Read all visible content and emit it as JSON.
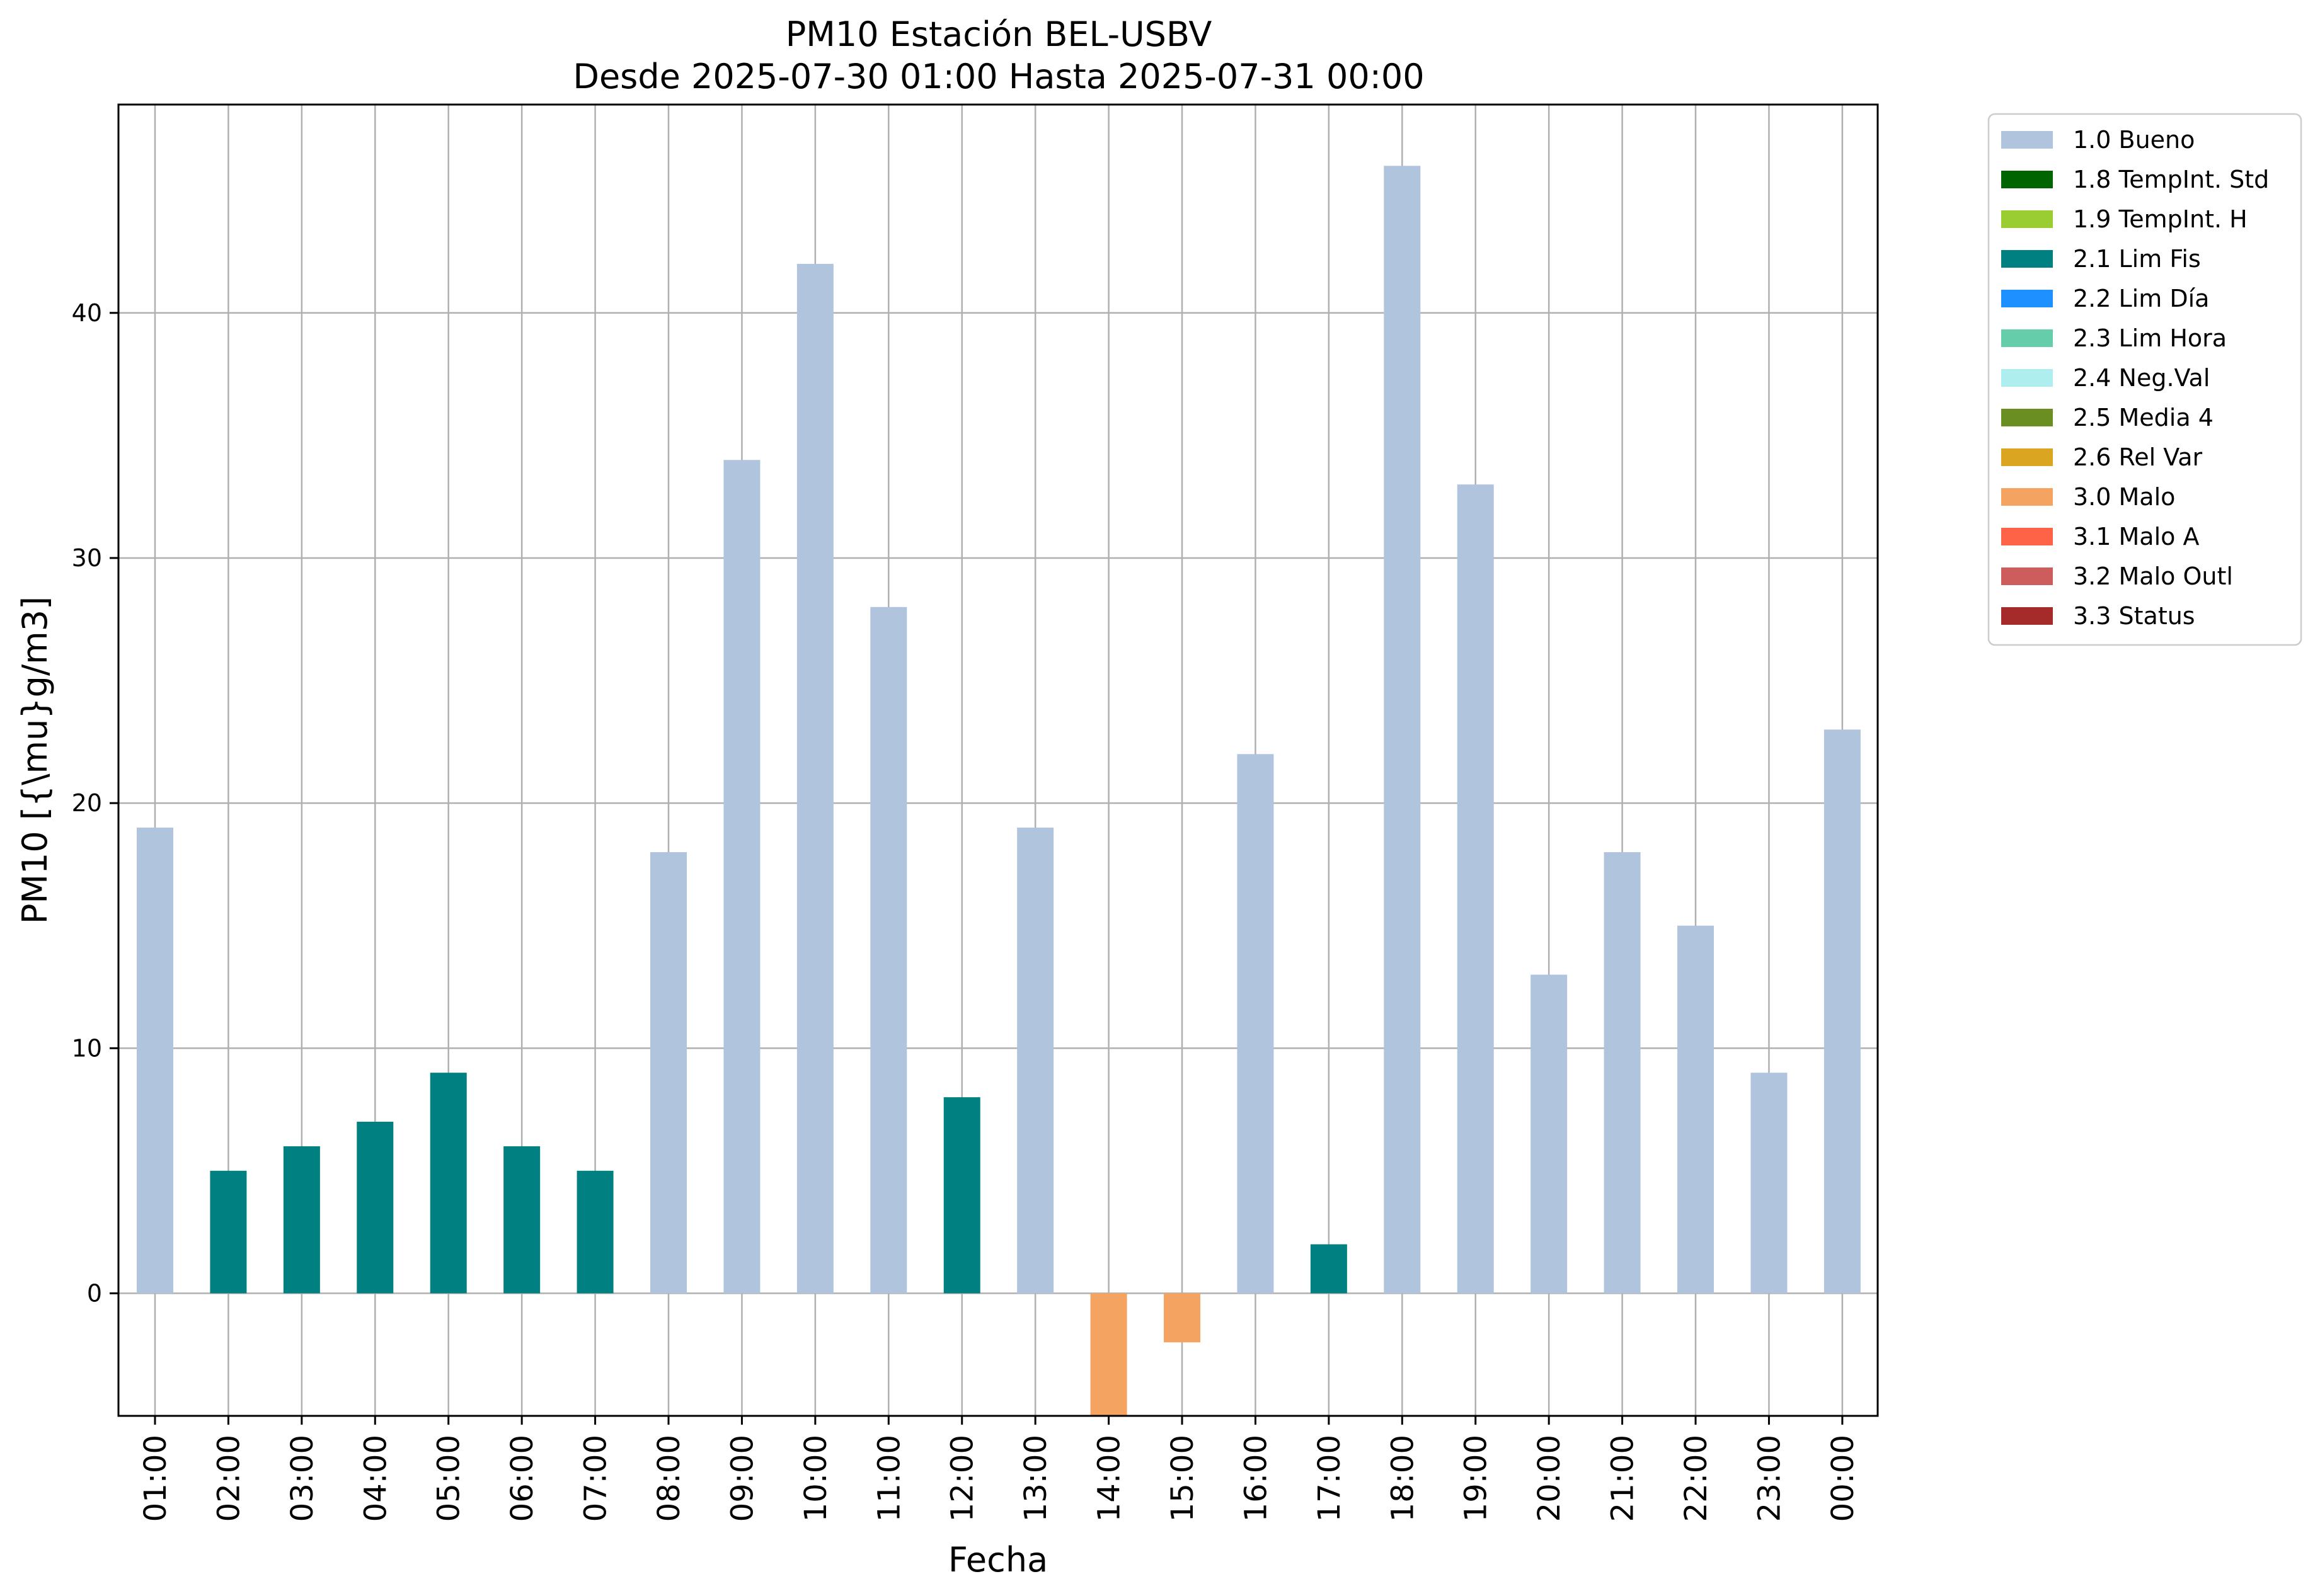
{
  "chart_data": {
    "type": "bar",
    "title": "PM10 Estación BEL-USBV",
    "subtitle": "Desde 2025-07-30 01:00 Hasta 2025-07-31 00:00",
    "xlabel": "Fecha",
    "ylabel": "PM10 [{\\mu}g/m3]",
    "categories": [
      "01:00",
      "02:00",
      "03:00",
      "04:00",
      "05:00",
      "06:00",
      "07:00",
      "08:00",
      "09:00",
      "10:00",
      "11:00",
      "12:00",
      "13:00",
      "14:00",
      "15:00",
      "16:00",
      "17:00",
      "18:00",
      "19:00",
      "20:00",
      "21:00",
      "22:00",
      "23:00",
      "00:00"
    ],
    "values": [
      19,
      5,
      6,
      7,
      9,
      6,
      5,
      18,
      34,
      42,
      28,
      8,
      19,
      -5,
      -2,
      22,
      2,
      46,
      33,
      13,
      18,
      15,
      9,
      23
    ],
    "flags": [
      "1.0 Bueno",
      "2.1 Lim Fis",
      "2.1 Lim Fis",
      "2.1 Lim Fis",
      "2.1 Lim Fis",
      "2.1 Lim Fis",
      "2.1 Lim Fis",
      "1.0 Bueno",
      "1.0 Bueno",
      "1.0 Bueno",
      "1.0 Bueno",
      "2.1 Lim Fis",
      "1.0 Bueno",
      "3.0 Malo",
      "3.0 Malo",
      "1.0 Bueno",
      "2.1 Lim Fis",
      "1.0 Bueno",
      "1.0 Bueno",
      "1.0 Bueno",
      "1.0 Bueno",
      "1.0 Bueno",
      "1.0 Bueno",
      "1.0 Bueno"
    ],
    "ylim": [
      -5,
      48.5
    ],
    "yticks": [
      "0",
      "10",
      "20",
      "30",
      "40"
    ],
    "grid": true,
    "legend_position": "outside-top-right",
    "legend": [
      {
        "label": "1.0 Bueno",
        "color": "#b0c4de"
      },
      {
        "label": "1.8 TempInt. Std",
        "color": "#006400"
      },
      {
        "label": "1.9 TempInt. H",
        "color": "#9acd32"
      },
      {
        "label": "2.1 Lim Fis",
        "color": "#008080"
      },
      {
        "label": "2.2 Lim Día",
        "color": "#1e90ff"
      },
      {
        "label": "2.3 Lim Hora",
        "color": "#66cdaa"
      },
      {
        "label": "2.4 Neg.Val",
        "color": "#afeeee"
      },
      {
        "label": "2.5 Media 4",
        "color": "#6b8e23"
      },
      {
        "label": "2.6 Rel Var",
        "color": "#daa520"
      },
      {
        "label": "3.0 Malo",
        "color": "#f4a460"
      },
      {
        "label": "3.1 Malo A",
        "color": "#ff6347"
      },
      {
        "label": "3.2 Malo Outl",
        "color": "#cd5c5c"
      },
      {
        "label": "3.3 Status",
        "color": "#a52a2a"
      }
    ]
  }
}
